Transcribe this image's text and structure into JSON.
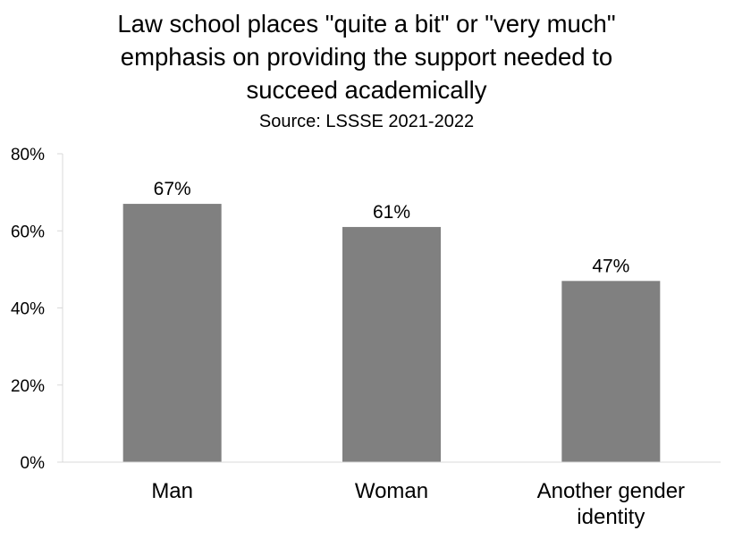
{
  "chart_data": {
    "type": "bar",
    "title": "Law school places \"quite a bit\" or \"very much\" emphasis on providing the support needed to succeed academically",
    "title_lines": [
      "Law school places \"quite a bit\" or \"very much\"",
      "emphasis on providing the support needed to",
      "succeed academically"
    ],
    "subtitle": "Source: LSSSE 2021-2022",
    "categories": [
      "Man",
      "Woman",
      "Another gender identity"
    ],
    "category_lines": [
      [
        "Man"
      ],
      [
        "Woman"
      ],
      [
        "Another gender",
        "identity"
      ]
    ],
    "values": [
      67,
      61,
      47
    ],
    "data_labels": [
      "67%",
      "61%",
      "47%"
    ],
    "ylim": [
      0,
      80
    ],
    "yticks": [
      0,
      20,
      40,
      60,
      80
    ],
    "ytick_labels": [
      "0%",
      "20%",
      "40%",
      "60%",
      "80%"
    ],
    "xlabel": "",
    "ylabel": "",
    "grid": false,
    "legend": "none",
    "bar_color": "#808080",
    "axis_color": "#d9d9d9"
  }
}
